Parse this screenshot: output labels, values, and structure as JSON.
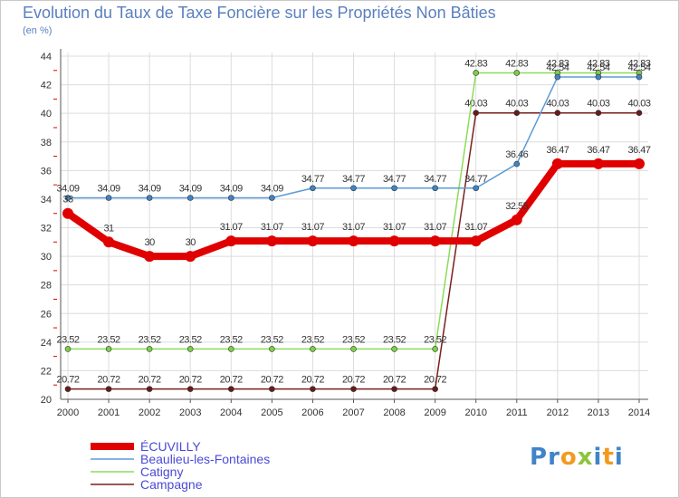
{
  "title": "Evolution du Taux de Taxe Foncière sur les Propriétés Non Bâties",
  "subtitle": "(en %)",
  "logo_text": "Proxiti",
  "chart_data": {
    "type": "line",
    "title": "Evolution du Taux de Taxe Foncière sur les Propriétés Non Bâties",
    "ylabel": "(en %)",
    "xlabel": "",
    "ylim": [
      20,
      44
    ],
    "yticks": [
      20,
      22,
      24,
      26,
      28,
      30,
      32,
      34,
      36,
      38,
      40,
      42,
      44
    ],
    "categories": [
      "2000",
      "2001",
      "2002",
      "2003",
      "2004",
      "2005",
      "2006",
      "2007",
      "2008",
      "2009",
      "2010",
      "2011",
      "2012",
      "2013",
      "2014"
    ],
    "series": [
      {
        "name": "Campagne",
        "color": "#7a1f1f",
        "marker_color": "#6b1a1a",
        "values": [
          20.72,
          20.72,
          20.72,
          20.72,
          20.72,
          20.72,
          20.72,
          20.72,
          20.72,
          20.72,
          40.03,
          40.03,
          40.03,
          40.03,
          40.03
        ],
        "labels": [
          "20.72",
          "20.72",
          "20.72",
          "20.72",
          "20.72",
          "20.72",
          "20.72",
          "20.72",
          "20.72",
          "20.72",
          "40.03",
          "40.03",
          "40.03",
          "40.03",
          "40.03"
        ]
      },
      {
        "name": "Catigny",
        "color": "#8cdc5a",
        "marker_color": "#7ccf45",
        "values": [
          23.52,
          23.52,
          23.52,
          23.52,
          23.52,
          23.52,
          23.52,
          23.52,
          23.52,
          23.52,
          42.83,
          42.83,
          42.83,
          42.83,
          42.83
        ],
        "labels": [
          "23.52",
          "23.52",
          "23.52",
          "23.52",
          "23.52",
          "23.52",
          "23.52",
          "23.52",
          "23.52",
          "23.52",
          "42.83",
          "42.83",
          "42.83",
          "42.83",
          "42.83"
        ]
      },
      {
        "name": "Beaulieu-les-Fontaines",
        "color": "#5b9bd5",
        "marker_color": "#3f84c8",
        "values": [
          34.09,
          34.09,
          34.09,
          34.09,
          34.09,
          34.09,
          34.77,
          34.77,
          34.77,
          34.77,
          34.77,
          36.46,
          42.54,
          42.54,
          42.54
        ],
        "labels": [
          "34.09",
          "34.09",
          "34.09",
          "34.09",
          "34.09",
          "34.09",
          "34.77",
          "34.77",
          "34.77",
          "34.77",
          "34.77",
          "36.46",
          "42.54",
          "42.54",
          "42.54"
        ]
      },
      {
        "name": "ÉCUVILLY",
        "color": "#e00000",
        "marker_color": "#e00000",
        "values": [
          33,
          31,
          30,
          30,
          31.07,
          31.07,
          31.07,
          31.07,
          31.07,
          31.07,
          31.07,
          32.55,
          36.47,
          36.47,
          36.47
        ],
        "labels": [
          "33",
          "31",
          "30",
          "30",
          "31.07",
          "31.07",
          "31.07",
          "31.07",
          "31.07",
          "31.07",
          "31.07",
          "32.55",
          "36.47",
          "36.47",
          "36.47"
        ]
      }
    ],
    "legend": [
      "ÉCUVILLY",
      "Beaulieu-les-Fontaines",
      "Catigny",
      "Campagne"
    ],
    "legend_position": "bottom-left"
  }
}
